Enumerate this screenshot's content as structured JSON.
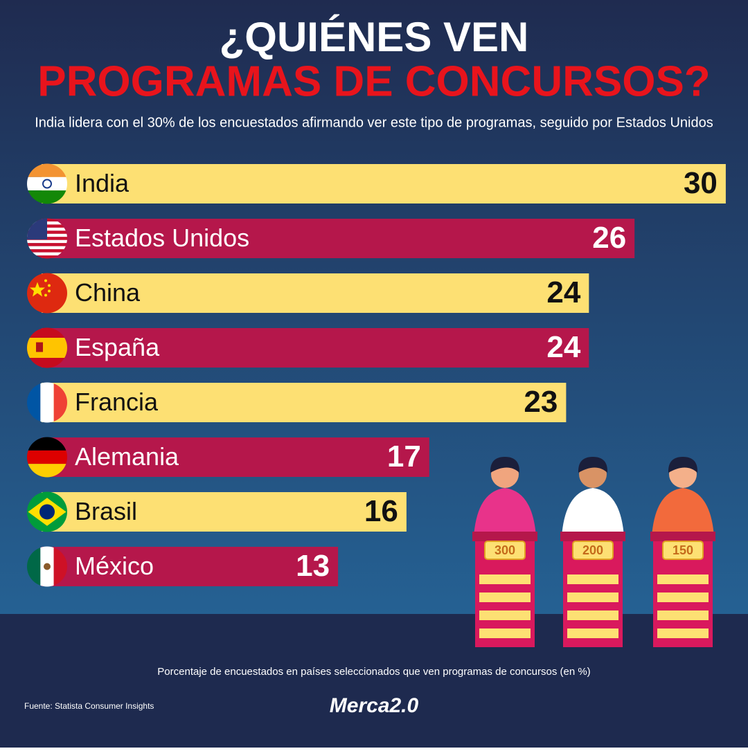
{
  "chart_data": {
    "type": "bar",
    "title": "¿QUIÉNES VEN",
    "title_line2": "PROGRAMAS DE CONCURSOS?",
    "subtitle": "India lidera con el 30% de los encuestados afirmando ver este tipo de programas, seguido por Estados Unidos",
    "categories": [
      "India",
      "Estados Unidos",
      "China",
      "España",
      "Francia",
      "Alemania",
      "Brasil",
      "México"
    ],
    "values": [
      30,
      26,
      24,
      24,
      23,
      17,
      16,
      13
    ],
    "colors": [
      "#fde073",
      "#b5174b"
    ],
    "note": "Porcentaje de encuestados en países seleccionados que ven programas de concursos (en %)",
    "source": "Fuente: Statista Consumer Insights"
  },
  "podium_labels": [
    "300",
    "200",
    "150"
  ],
  "logo": "Merca2.0"
}
